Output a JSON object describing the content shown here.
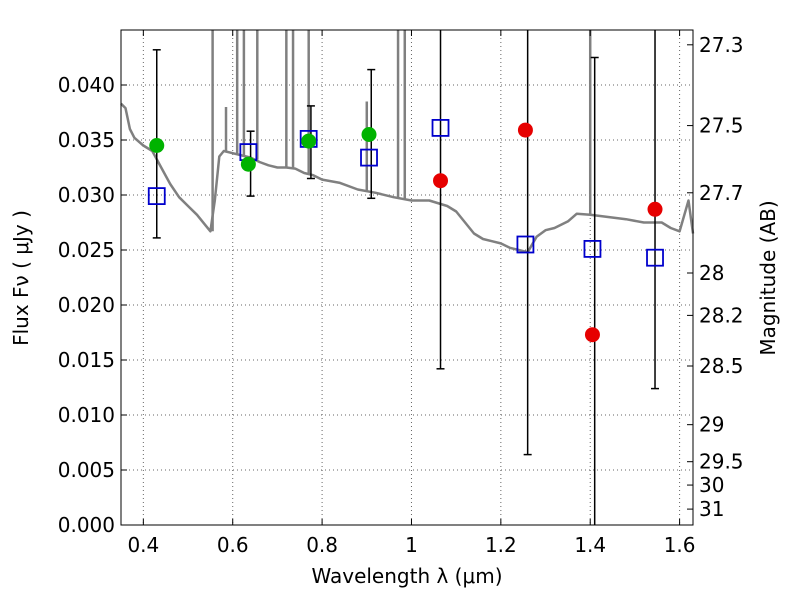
{
  "chart_data": {
    "type": "scatter",
    "xlabel": "Wavelength  λ (μm)",
    "ylabel": "Flux  Fν  ( μJy )",
    "ylabel_right": "Magnitude (AB)",
    "xlim": [
      0.35,
      1.63
    ],
    "ylim": [
      0.0,
      0.045
    ],
    "grid": true,
    "x_ticks": [
      0.4,
      0.6,
      0.8,
      1.0,
      1.2,
      1.4,
      1.6
    ],
    "x_tick_labels": [
      "0.4",
      "0.6",
      "0.8",
      "1",
      "1.2",
      "1.4",
      "1.6"
    ],
    "y_ticks": [
      0.0,
      0.005,
      0.01,
      0.015,
      0.02,
      0.025,
      0.03,
      0.035,
      0.04
    ],
    "y_tick_labels": [
      "0.000",
      "0.005",
      "0.010",
      "0.015",
      "0.020",
      "0.025",
      "0.030",
      "0.035",
      "0.040"
    ],
    "right_ticks": [
      {
        "mag": 27.3,
        "label": "27.3"
      },
      {
        "mag": 27.5,
        "label": "27.5"
      },
      {
        "mag": 27.7,
        "label": "27.7"
      },
      {
        "mag": 28.0,
        "label": "28"
      },
      {
        "mag": 28.2,
        "label": "28.2"
      },
      {
        "mag": 28.5,
        "label": "28.5"
      },
      {
        "mag": 29.0,
        "label": "29"
      },
      {
        "mag": 29.5,
        "label": "29.5"
      },
      {
        "mag": 30.0,
        "label": "30"
      },
      {
        "mag": 31.0,
        "label": "31"
      }
    ],
    "colors": {
      "model": "#808080",
      "green": "#00b300",
      "red": "#e60000",
      "square": "#0000cc",
      "errorbar": "#000000",
      "grid": "#666666"
    },
    "model_sed": {
      "name": "",
      "x": [
        0.35,
        0.36,
        0.37,
        0.38,
        0.4,
        0.42,
        0.44,
        0.46,
        0.48,
        0.5,
        0.52,
        0.54,
        0.55,
        0.56,
        0.57,
        0.58,
        0.6,
        0.62,
        0.64,
        0.66,
        0.68,
        0.7,
        0.72,
        0.74,
        0.76,
        0.78,
        0.8,
        0.84,
        0.88,
        0.92,
        0.96,
        1.0,
        1.04,
        1.08,
        1.1,
        1.12,
        1.14,
        1.16,
        1.18,
        1.2,
        1.22,
        1.24,
        1.26,
        1.27,
        1.28,
        1.3,
        1.32,
        1.35,
        1.37,
        1.4,
        1.44,
        1.48,
        1.52,
        1.56,
        1.58,
        1.6,
        1.62,
        1.63
      ],
      "y": [
        0.0383,
        0.0379,
        0.036,
        0.0352,
        0.0345,
        0.034,
        0.0325,
        0.031,
        0.0298,
        0.029,
        0.0282,
        0.0272,
        0.0267,
        0.0295,
        0.0335,
        0.034,
        0.0338,
        0.0336,
        0.0334,
        0.033,
        0.0327,
        0.0325,
        0.0325,
        0.0324,
        0.032,
        0.0318,
        0.0314,
        0.0311,
        0.0305,
        0.0302,
        0.0298,
        0.0295,
        0.0295,
        0.029,
        0.0285,
        0.0275,
        0.0265,
        0.026,
        0.0258,
        0.0256,
        0.0252,
        0.025,
        0.0248,
        0.0255,
        0.0262,
        0.0268,
        0.027,
        0.0276,
        0.0283,
        0.0282,
        0.028,
        0.0278,
        0.0275,
        0.0275,
        0.027,
        0.0267,
        0.0295,
        0.0265
      ]
    },
    "model_spikes": [
      {
        "x": 0.555,
        "top": 0.045,
        "base": 0.0267
      },
      {
        "x": 0.585,
        "top": 0.038,
        "base": 0.034
      },
      {
        "x": 0.61,
        "top": 0.045,
        "base": 0.0337
      },
      {
        "x": 0.625,
        "top": 0.045,
        "base": 0.0336
      },
      {
        "x": 0.655,
        "top": 0.045,
        "base": 0.0332
      },
      {
        "x": 0.72,
        "top": 0.045,
        "base": 0.0325
      },
      {
        "x": 0.735,
        "top": 0.045,
        "base": 0.0325
      },
      {
        "x": 0.77,
        "top": 0.045,
        "base": 0.0319
      },
      {
        "x": 0.9,
        "top": 0.0385,
        "base": 0.0304
      },
      {
        "x": 0.97,
        "top": 0.045,
        "base": 0.0297
      },
      {
        "x": 0.985,
        "top": 0.045,
        "base": 0.0296
      },
      {
        "x": 1.4,
        "top": 0.045,
        "base": 0.0282
      }
    ],
    "green_points": {
      "name": "",
      "x": [
        0.43,
        0.635,
        0.77,
        0.905
      ],
      "y": [
        0.0345,
        0.0328,
        0.0349,
        0.0355
      ]
    },
    "red_points": {
      "name": "",
      "x": [
        1.065,
        1.255,
        1.405,
        1.545
      ],
      "y": [
        0.0313,
        0.0359,
        0.0173,
        0.0287
      ]
    },
    "square_points": {
      "name": "",
      "x": [
        0.43,
        0.635,
        0.77,
        0.905,
        1.065,
        1.255,
        1.405,
        1.545
      ],
      "y": [
        0.0299,
        0.0339,
        0.0351,
        0.0334,
        0.0361,
        0.0255,
        0.0251,
        0.0243
      ]
    },
    "error_bars": [
      {
        "x": 0.43,
        "low": 0.0261,
        "high": 0.0432
      },
      {
        "x": 0.64,
        "low": 0.0299,
        "high": 0.0358
      },
      {
        "x": 0.775,
        "low": 0.0315,
        "high": 0.0381
      },
      {
        "x": 0.91,
        "low": 0.0297,
        "high": 0.0414
      },
      {
        "x": 1.065,
        "low": 0.0142,
        "high": 0.045
      },
      {
        "x": 1.26,
        "low": 0.0064,
        "high": 0.045
      },
      {
        "x": 1.41,
        "low": 0.0,
        "high": 0.0425
      },
      {
        "x": 1.545,
        "low": 0.0124,
        "high": 0.045
      }
    ]
  }
}
